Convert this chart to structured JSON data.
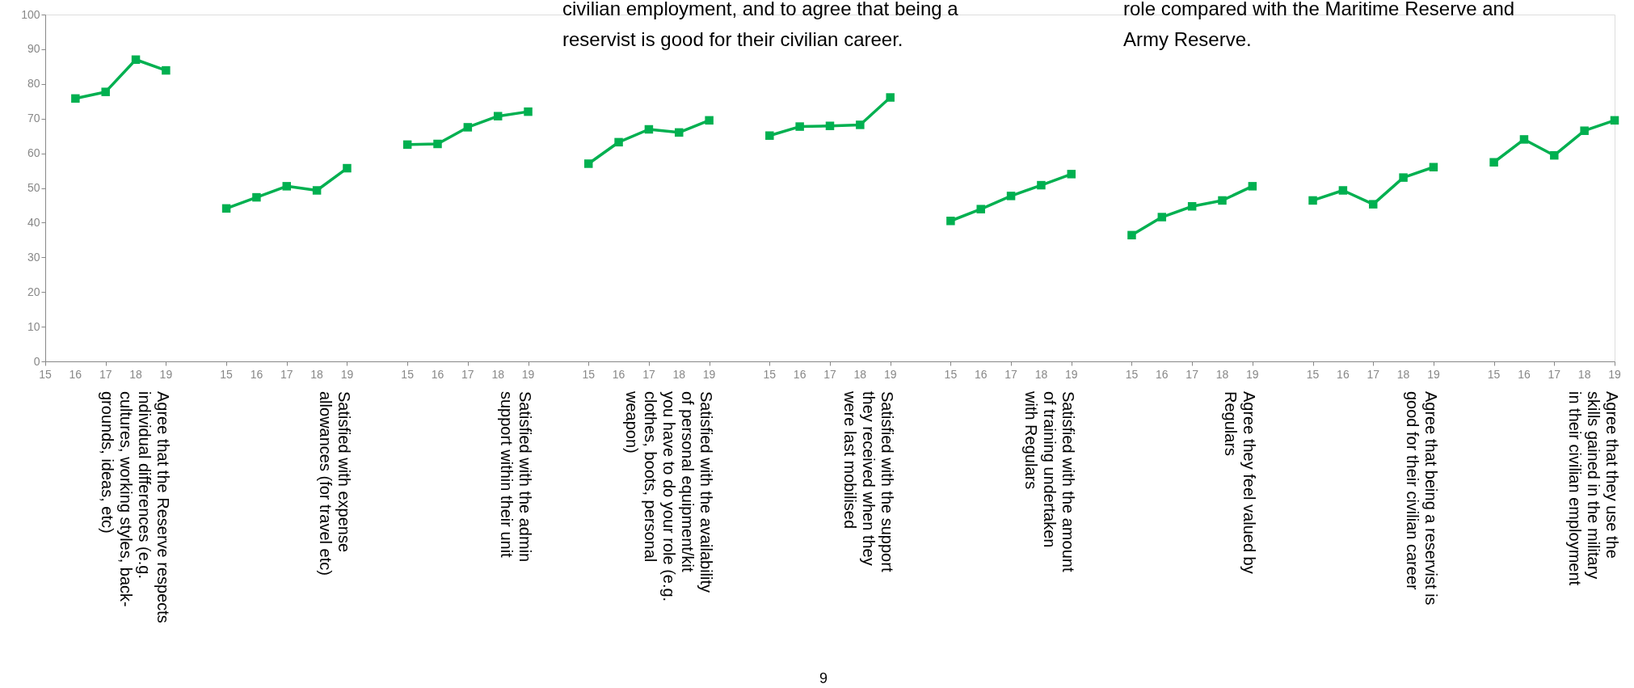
{
  "chart_data": {
    "type": "line",
    "categories": [
      "15",
      "16",
      "17",
      "18",
      "19",
      null,
      "15",
      "16",
      "17",
      "18",
      "19",
      null,
      "15",
      "16",
      "17",
      "18",
      "19",
      null,
      "15",
      "16",
      "17",
      "18",
      "19",
      null,
      "15",
      "16",
      "17",
      "18",
      "19",
      null,
      "15",
      "16",
      "17",
      "18",
      "19",
      null,
      "15",
      "16",
      "17",
      "18",
      "19",
      null,
      "15",
      "16",
      "17",
      "18",
      "19",
      null,
      "15",
      "16",
      "17",
      "18",
      "19"
    ],
    "series": [
      {
        "color": "#00b050",
        "values": [
          null,
          75.8,
          77.7,
          87.0,
          83.9,
          null,
          null,
          null,
          null,
          null,
          null,
          null,
          null,
          null,
          null,
          null,
          null,
          null,
          null,
          null,
          null,
          null,
          null,
          null,
          null,
          null,
          null,
          null,
          null,
          null,
          null,
          null,
          null,
          null,
          null,
          null,
          null,
          null,
          null,
          null,
          null,
          null,
          null,
          null,
          null,
          null,
          null,
          null,
          null,
          null,
          null,
          null,
          null
        ]
      },
      {
        "color": "#00b050",
        "values": [
          null,
          null,
          null,
          null,
          null,
          null,
          44.1,
          47.3,
          50.5,
          49.3,
          55.7,
          null,
          null,
          null,
          null,
          null,
          null,
          null,
          null,
          null,
          null,
          null,
          null,
          null,
          null,
          null,
          null,
          null,
          null,
          null,
          null,
          null,
          null,
          null,
          null,
          null,
          null,
          null,
          null,
          null,
          null,
          null,
          null,
          null,
          null,
          null,
          null,
          null,
          null,
          null,
          null,
          null,
          null
        ]
      },
      {
        "color": "#00b050",
        "values": [
          null,
          null,
          null,
          null,
          null,
          null,
          null,
          null,
          null,
          null,
          null,
          null,
          62.5,
          62.7,
          67.5,
          70.7,
          72.0,
          null,
          null,
          null,
          null,
          null,
          null,
          null,
          null,
          null,
          null,
          null,
          null,
          null,
          null,
          null,
          null,
          null,
          null,
          null,
          null,
          null,
          null,
          null,
          null,
          null,
          null,
          null,
          null,
          null,
          null,
          null,
          null,
          null,
          null,
          null,
          null
        ]
      },
      {
        "color": "#00b050",
        "values": [
          null,
          null,
          null,
          null,
          null,
          null,
          null,
          null,
          null,
          null,
          null,
          null,
          null,
          null,
          null,
          null,
          null,
          null,
          57.0,
          63.2,
          66.9,
          66.0,
          69.5,
          null,
          null,
          null,
          null,
          null,
          null,
          null,
          null,
          null,
          null,
          null,
          null,
          null,
          null,
          null,
          null,
          null,
          null,
          null,
          null,
          null,
          null,
          null,
          null,
          null,
          null,
          null,
          null,
          null,
          null
        ]
      },
      {
        "color": "#00b050",
        "values": [
          null,
          null,
          null,
          null,
          null,
          null,
          null,
          null,
          null,
          null,
          null,
          null,
          null,
          null,
          null,
          null,
          null,
          null,
          null,
          null,
          null,
          null,
          null,
          null,
          65.1,
          67.7,
          67.9,
          68.2,
          76.1,
          null,
          null,
          null,
          null,
          null,
          null,
          null,
          null,
          null,
          null,
          null,
          null,
          null,
          null,
          null,
          null,
          null,
          null,
          null,
          null,
          null,
          null,
          null,
          null
        ]
      },
      {
        "color": "#00b050",
        "values": [
          null,
          null,
          null,
          null,
          null,
          null,
          null,
          null,
          null,
          null,
          null,
          null,
          null,
          null,
          null,
          null,
          null,
          null,
          null,
          null,
          null,
          null,
          null,
          null,
          null,
          null,
          null,
          null,
          null,
          null,
          40.5,
          43.9,
          47.7,
          50.8,
          54.0,
          null,
          null,
          null,
          null,
          null,
          null,
          null,
          null,
          null,
          null,
          null,
          null,
          null,
          null,
          null,
          null,
          null,
          null
        ]
      },
      {
        "color": "#00b050",
        "values": [
          null,
          null,
          null,
          null,
          null,
          null,
          null,
          null,
          null,
          null,
          null,
          null,
          null,
          null,
          null,
          null,
          null,
          null,
          null,
          null,
          null,
          null,
          null,
          null,
          null,
          null,
          null,
          null,
          null,
          null,
          null,
          null,
          null,
          null,
          null,
          null,
          36.4,
          41.6,
          44.7,
          46.4,
          50.5,
          null,
          null,
          null,
          null,
          null,
          null,
          null,
          null,
          null,
          null,
          null,
          null
        ]
      },
      {
        "color": "#00b050",
        "values": [
          null,
          null,
          null,
          null,
          null,
          null,
          null,
          null,
          null,
          null,
          null,
          null,
          null,
          null,
          null,
          null,
          null,
          null,
          null,
          null,
          null,
          null,
          null,
          null,
          null,
          null,
          null,
          null,
          null,
          null,
          null,
          null,
          null,
          null,
          null,
          null,
          null,
          null,
          null,
          null,
          null,
          null,
          46.4,
          49.3,
          45.3,
          53.0,
          56.0,
          null,
          null,
          null,
          null,
          null,
          null
        ]
      },
      {
        "color": "#00b050",
        "values": [
          null,
          null,
          null,
          null,
          null,
          null,
          null,
          null,
          null,
          null,
          null,
          null,
          null,
          null,
          null,
          null,
          null,
          null,
          null,
          null,
          null,
          null,
          null,
          null,
          null,
          null,
          null,
          null,
          null,
          null,
          null,
          null,
          null,
          null,
          null,
          null,
          null,
          null,
          null,
          null,
          null,
          null,
          null,
          null,
          null,
          null,
          null,
          null,
          57.4,
          64.0,
          59.4,
          66.5,
          69.5
        ]
      }
    ],
    "ylim": [
      0,
      100
    ],
    "yticks": [
      0,
      10,
      20,
      30,
      40,
      50,
      60,
      70,
      80,
      90,
      100
    ],
    "marker": "square",
    "line_style": "solid",
    "grid": false,
    "annotations": [
      "Agree that the Reserve respects\nindividual differences (e.g.\ncultures, working styles, back-\ngrounds, ideas, etc)",
      "Satisfied with expense\nallowances (for travel etc)",
      "Satisfied with the admin\nsupport within their unit",
      "Satisfied with the availability\nof personal equipment/kit\nyou have to do your role (e.g.\nclothes, boots, personal\nweapon)",
      "Satisfied with the support\nthey received when they\nwere last mobilised",
      "Satisfied with the amount\nof training undertaken\nwith Regulars",
      "Agree they feel valued by\nRegulars",
      "Agree that being a reservist is\ngood for their civilian career",
      "Agree that they use the\nskills gained in the military\nin their civilian employment",
      "civilian employment, and to agree that being a\nreservist is good for their civilian career.",
      "role compared with the Maritime Reserve and\nArmy Reserve.",
      "9"
    ]
  }
}
